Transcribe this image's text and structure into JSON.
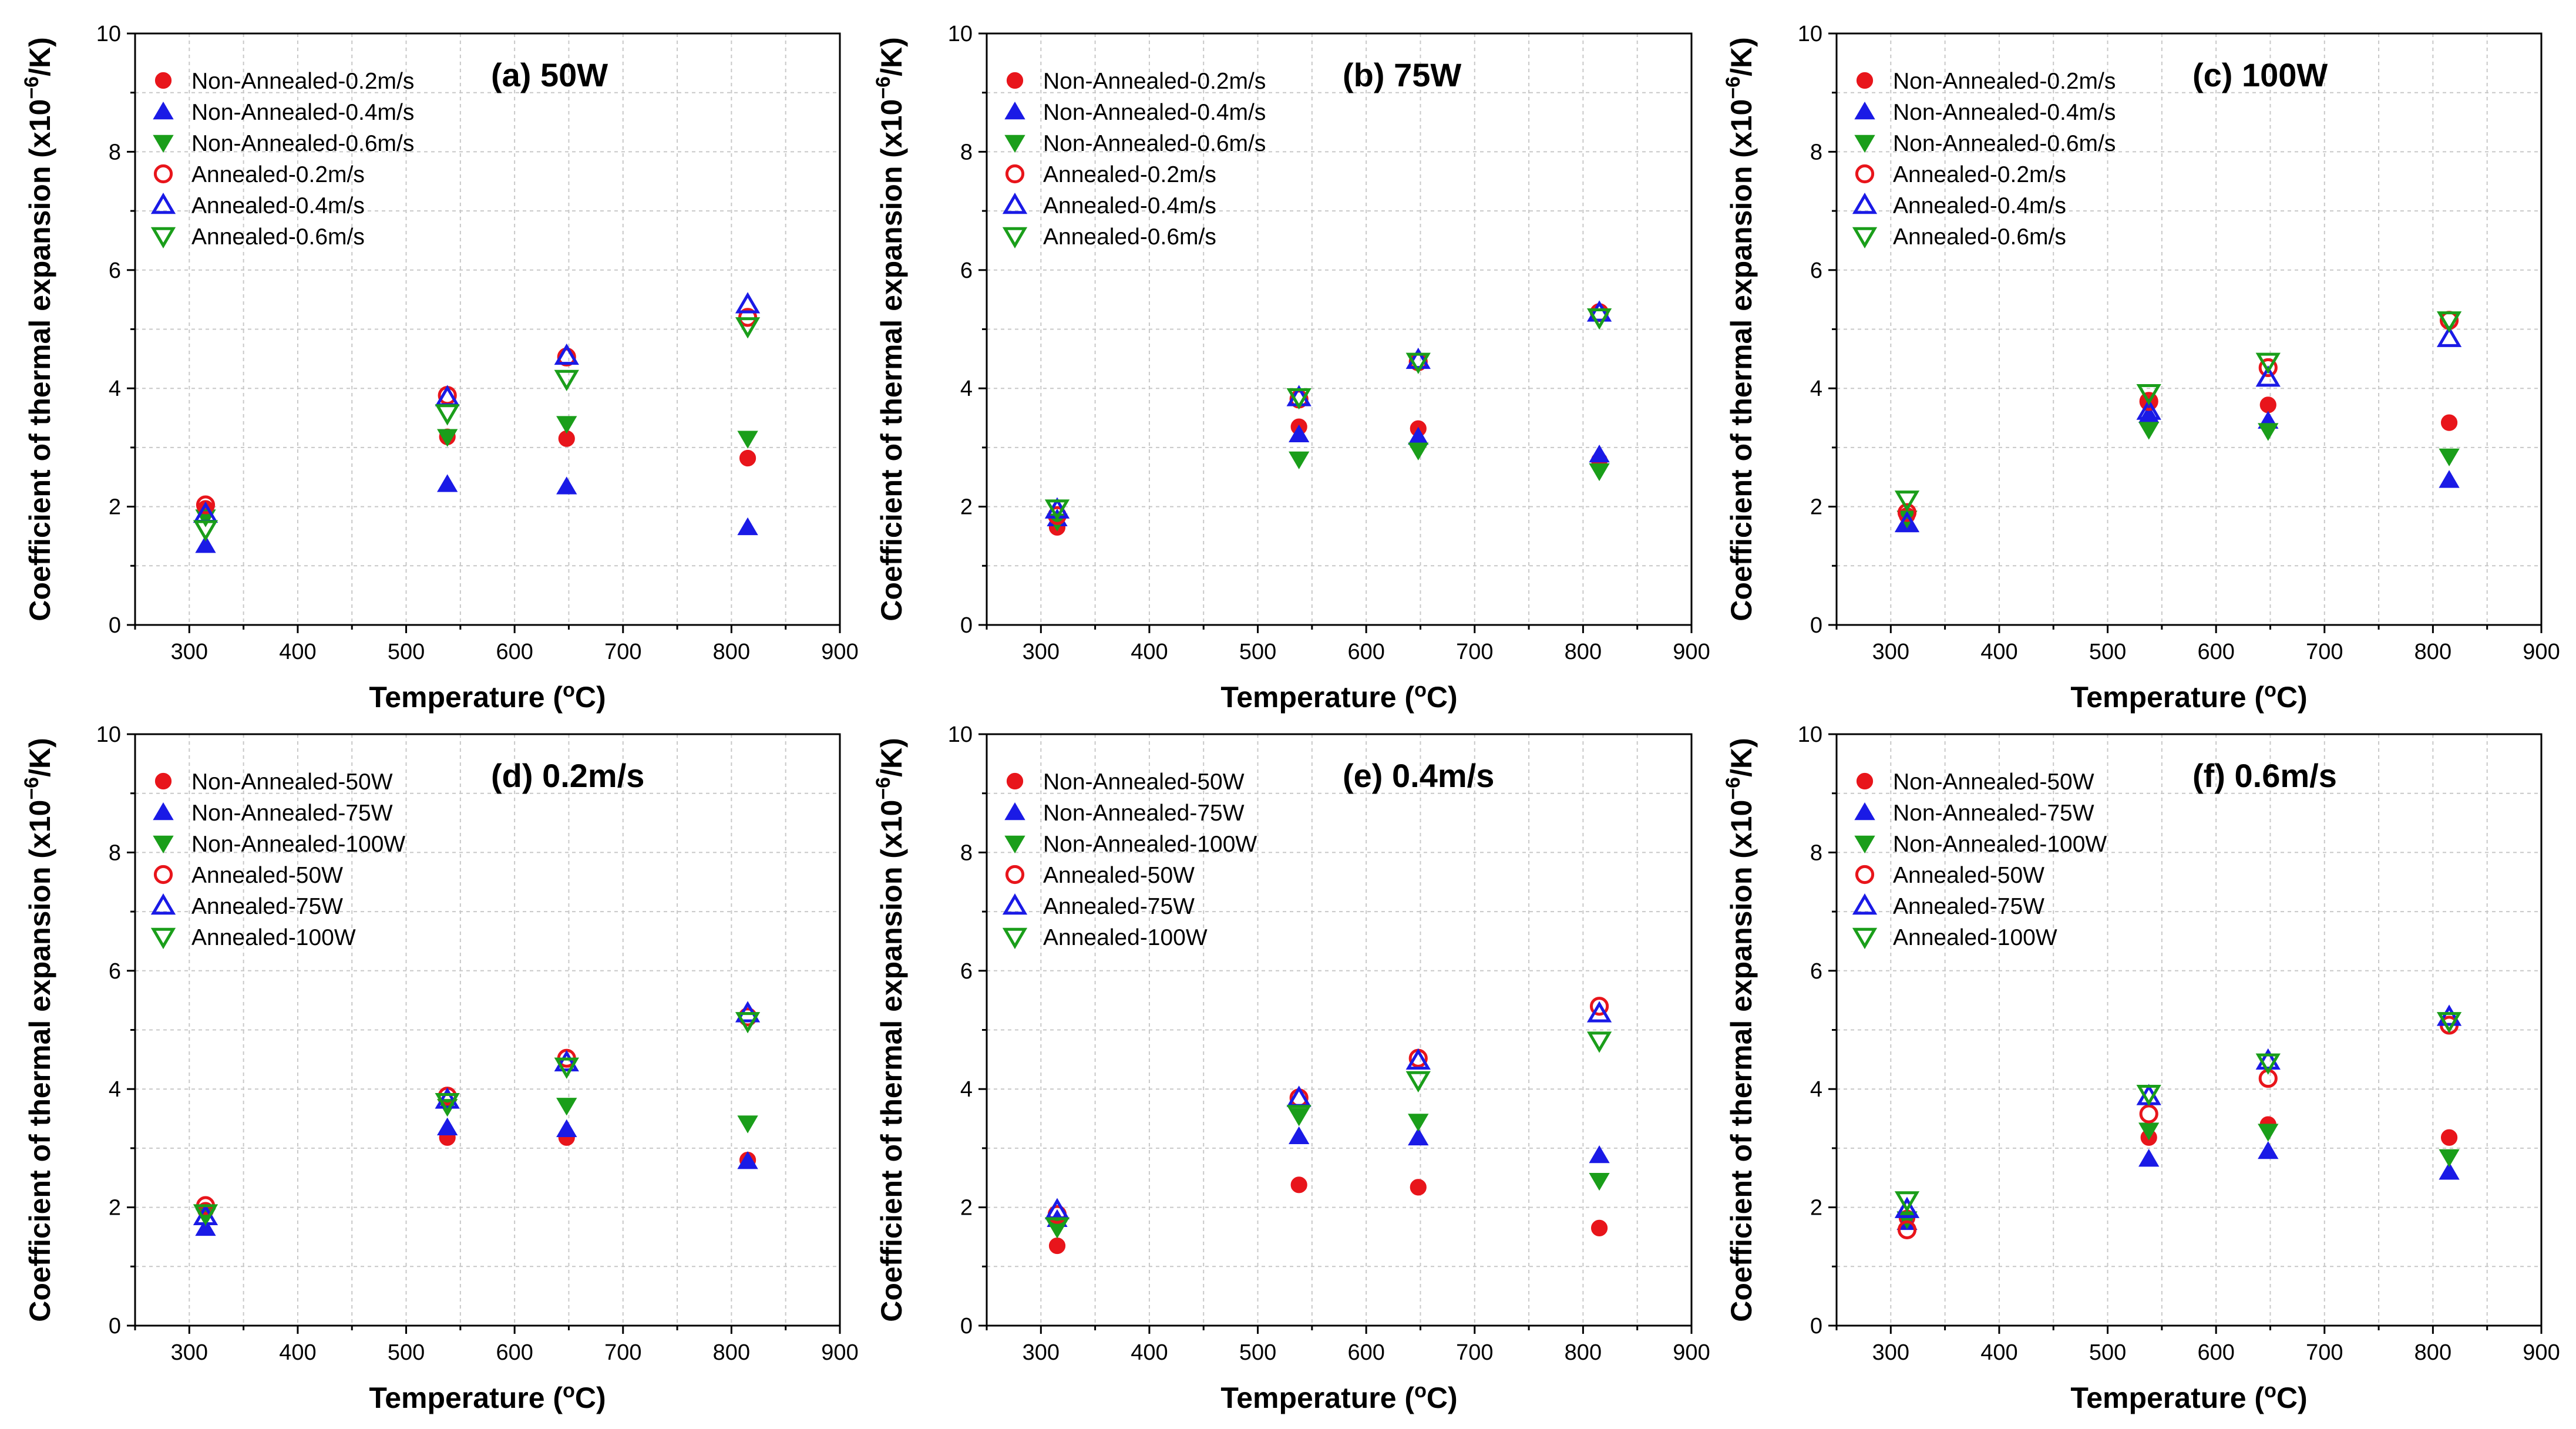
{
  "figure": {
    "ylabel_prefix": "Coefficient of thermal expansion (x10",
    "ylabel_exponent": "−6",
    "ylabel_suffix": "/K)",
    "xlabel_prefix": "Temperature (",
    "xlabel_degree": "o",
    "xlabel_suffix": "C)"
  },
  "chart_data": [
    {
      "type": "scatter",
      "title": "(a) 50W",
      "xlabel": "Temperature (°C)",
      "ylabel": "Coefficient of thermal expansion (x10⁻⁶/K)",
      "xlim": [
        250,
        900
      ],
      "ylim": [
        0,
        10
      ],
      "xticks": [
        300,
        400,
        500,
        600,
        700,
        800,
        900
      ],
      "yticks": [
        0,
        2,
        4,
        6,
        8,
        10
      ],
      "grid": true,
      "legend": "top-left",
      "x": [
        315,
        538,
        648,
        815
      ],
      "series": [
        {
          "name": "Non-Annealed-0.2m/s",
          "marker": "circle",
          "filled": true,
          "color": "#e8151b",
          "values": [
            1.97,
            3.18,
            3.15,
            2.82
          ]
        },
        {
          "name": "Non-Annealed-0.4m/s",
          "marker": "triangle-up",
          "filled": true,
          "color": "#1a1ae6",
          "values": [
            1.35,
            2.38,
            2.34,
            1.65
          ]
        },
        {
          "name": "Non-Annealed-0.6m/s",
          "marker": "triangle-down",
          "filled": true,
          "color": "#1a9e1a",
          "values": [
            1.82,
            3.18,
            3.4,
            3.15
          ]
        },
        {
          "name": "Annealed-0.2m/s",
          "marker": "circle",
          "filled": false,
          "color": "#e8151b",
          "values": [
            2.03,
            3.88,
            4.53,
            5.2
          ]
        },
        {
          "name": "Annealed-0.4m/s",
          "marker": "triangle-up",
          "filled": false,
          "color": "#1a1ae6",
          "values": [
            1.88,
            3.85,
            4.55,
            5.42
          ]
        },
        {
          "name": "Annealed-0.6m/s",
          "marker": "triangle-down",
          "filled": false,
          "color": "#1a9e1a",
          "values": [
            1.62,
            3.58,
            4.16,
            5.05
          ]
        }
      ]
    },
    {
      "type": "scatter",
      "title": "(b) 75W",
      "xlabel": "Temperature (°C)",
      "ylabel": "Coefficient of thermal expansion (x10⁻⁶/K)",
      "xlim": [
        250,
        900
      ],
      "ylim": [
        0,
        10
      ],
      "xticks": [
        300,
        400,
        500,
        600,
        700,
        800,
        900
      ],
      "yticks": [
        0,
        2,
        4,
        6,
        8,
        10
      ],
      "grid": true,
      "legend": "top-left",
      "x": [
        315,
        538,
        648,
        815
      ],
      "series": [
        {
          "name": "Non-Annealed-0.2m/s",
          "marker": "circle",
          "filled": true,
          "color": "#e8151b",
          "values": [
            1.65,
            3.35,
            3.32,
            2.78
          ]
        },
        {
          "name": "Non-Annealed-0.4m/s",
          "marker": "triangle-up",
          "filled": true,
          "color": "#1a1ae6",
          "values": [
            1.8,
            3.22,
            3.18,
            2.88
          ]
        },
        {
          "name": "Non-Annealed-0.6m/s",
          "marker": "triangle-down",
          "filled": true,
          "color": "#1a9e1a",
          "values": [
            1.75,
            2.8,
            2.95,
            2.6
          ]
        },
        {
          "name": "Annealed-0.2m/s",
          "marker": "circle",
          "filled": false,
          "color": "#e8151b",
          "values": [
            1.85,
            3.82,
            4.45,
            5.28
          ]
        },
        {
          "name": "Annealed-0.4m/s",
          "marker": "triangle-up",
          "filled": false,
          "color": "#1a1ae6",
          "values": [
            1.95,
            3.85,
            4.48,
            5.28
          ]
        },
        {
          "name": "Annealed-0.6m/s",
          "marker": "triangle-down",
          "filled": false,
          "color": "#1a9e1a",
          "values": [
            1.97,
            3.85,
            4.45,
            5.2
          ]
        }
      ]
    },
    {
      "type": "scatter",
      "title": "(c) 100W",
      "xlabel": "Temperature (°C)",
      "ylabel": "Coefficient of thermal expansion (x10⁻⁶/K)",
      "xlim": [
        250,
        900
      ],
      "ylim": [
        0,
        10
      ],
      "xticks": [
        300,
        400,
        500,
        600,
        700,
        800,
        900
      ],
      "yticks": [
        0,
        2,
        4,
        6,
        8,
        10
      ],
      "grid": true,
      "legend": "top-left",
      "x": [
        315,
        538,
        648,
        815
      ],
      "series": [
        {
          "name": "Non-Annealed-0.2m/s",
          "marker": "circle",
          "filled": true,
          "color": "#e8151b",
          "values": [
            1.85,
            3.75,
            3.72,
            3.42
          ]
        },
        {
          "name": "Non-Annealed-0.4m/s",
          "marker": "triangle-up",
          "filled": true,
          "color": "#1a1ae6",
          "values": [
            1.7,
            3.55,
            3.45,
            2.45
          ]
        },
        {
          "name": "Non-Annealed-0.6m/s",
          "marker": "triangle-down",
          "filled": true,
          "color": "#1a9e1a",
          "values": [
            1.8,
            3.3,
            3.28,
            2.85
          ]
        },
        {
          "name": "Annealed-0.2m/s",
          "marker": "circle",
          "filled": false,
          "color": "#e8151b",
          "values": [
            1.9,
            3.78,
            4.35,
            5.15
          ]
        },
        {
          "name": "Annealed-0.4m/s",
          "marker": "triangle-up",
          "filled": false,
          "color": "#1a1ae6",
          "values": [
            1.72,
            3.62,
            4.18,
            4.85
          ]
        },
        {
          "name": "Annealed-0.6m/s",
          "marker": "triangle-down",
          "filled": false,
          "color": "#1a9e1a",
          "values": [
            2.12,
            3.92,
            4.45,
            5.15
          ]
        }
      ]
    },
    {
      "type": "scatter",
      "title": "(d) 0.2m/s",
      "xlabel": "Temperature (°C)",
      "ylabel": "Coefficient of thermal expansion (x10⁻⁶/K)",
      "xlim": [
        250,
        900
      ],
      "ylim": [
        0,
        10
      ],
      "xticks": [
        300,
        400,
        500,
        600,
        700,
        800,
        900
      ],
      "yticks": [
        0,
        2,
        4,
        6,
        8,
        10
      ],
      "grid": true,
      "legend": "top-left",
      "x": [
        315,
        538,
        648,
        815
      ],
      "series": [
        {
          "name": "Non-Annealed-50W",
          "marker": "circle",
          "filled": true,
          "color": "#e8151b",
          "values": [
            1.95,
            3.18,
            3.18,
            2.8
          ]
        },
        {
          "name": "Non-Annealed-75W",
          "marker": "triangle-up",
          "filled": true,
          "color": "#1a1ae6",
          "values": [
            1.65,
            3.35,
            3.32,
            2.78
          ]
        },
        {
          "name": "Non-Annealed-100W",
          "marker": "triangle-down",
          "filled": true,
          "color": "#1a9e1a",
          "values": [
            1.85,
            3.7,
            3.72,
            3.42
          ]
        },
        {
          "name": "Annealed-50W",
          "marker": "circle",
          "filled": false,
          "color": "#e8151b",
          "values": [
            2.03,
            3.88,
            4.52,
            5.22
          ]
        },
        {
          "name": "Annealed-75W",
          "marker": "triangle-up",
          "filled": false,
          "color": "#1a1ae6",
          "values": [
            1.85,
            3.82,
            4.45,
            5.28
          ]
        },
        {
          "name": "Annealed-100W",
          "marker": "triangle-down",
          "filled": false,
          "color": "#1a9e1a",
          "values": [
            1.9,
            3.78,
            4.38,
            5.15
          ]
        }
      ]
    },
    {
      "type": "scatter",
      "title": "(e) 0.4m/s",
      "xlabel": "Temperature (°C)",
      "ylabel": "Coefficient of thermal expansion (x10⁻⁶/K)",
      "xlim": [
        250,
        900
      ],
      "ylim": [
        0,
        10
      ],
      "xticks": [
        300,
        400,
        500,
        600,
        700,
        800,
        900
      ],
      "yticks": [
        0,
        2,
        4,
        6,
        8,
        10
      ],
      "grid": true,
      "legend": "top-left",
      "x": [
        315,
        538,
        648,
        815
      ],
      "series": [
        {
          "name": "Non-Annealed-50W",
          "marker": "circle",
          "filled": true,
          "color": "#e8151b",
          "values": [
            1.35,
            2.38,
            2.34,
            1.65
          ]
        },
        {
          "name": "Non-Annealed-75W",
          "marker": "triangle-up",
          "filled": true,
          "color": "#1a1ae6",
          "values": [
            1.8,
            3.2,
            3.18,
            2.88
          ]
        },
        {
          "name": "Non-Annealed-100W",
          "marker": "triangle-down",
          "filled": true,
          "color": "#1a9e1a",
          "values": [
            1.7,
            3.55,
            3.45,
            2.45
          ]
        },
        {
          "name": "Annealed-50W",
          "marker": "circle",
          "filled": false,
          "color": "#e8151b",
          "values": [
            1.88,
            3.85,
            4.52,
            5.4
          ]
        },
        {
          "name": "Annealed-75W",
          "marker": "triangle-up",
          "filled": false,
          "color": "#1a1ae6",
          "values": [
            1.95,
            3.85,
            4.48,
            5.28
          ]
        },
        {
          "name": "Annealed-100W",
          "marker": "triangle-down",
          "filled": false,
          "color": "#1a9e1a",
          "values": [
            1.68,
            3.58,
            4.15,
            4.82
          ]
        }
      ]
    },
    {
      "type": "scatter",
      "title": "(f) 0.6m/s",
      "xlabel": "Temperature (°C)",
      "ylabel": "Coefficient of thermal expansion (x10⁻⁶/K)",
      "xlim": [
        250,
        900
      ],
      "ylim": [
        0,
        10
      ],
      "xticks": [
        300,
        400,
        500,
        600,
        700,
        800,
        900
      ],
      "yticks": [
        0,
        2,
        4,
        6,
        8,
        10
      ],
      "grid": true,
      "legend": "top-left",
      "x": [
        315,
        538,
        648,
        815
      ],
      "series": [
        {
          "name": "Non-Annealed-50W",
          "marker": "circle",
          "filled": true,
          "color": "#e8151b",
          "values": [
            1.82,
            3.18,
            3.4,
            3.18
          ]
        },
        {
          "name": "Non-Annealed-75W",
          "marker": "triangle-up",
          "filled": true,
          "color": "#1a1ae6",
          "values": [
            1.75,
            2.82,
            2.95,
            2.6
          ]
        },
        {
          "name": "Non-Annealed-100W",
          "marker": "triangle-down",
          "filled": true,
          "color": "#1a9e1a",
          "values": [
            1.8,
            3.3,
            3.28,
            2.85
          ]
        },
        {
          "name": "Annealed-50W",
          "marker": "circle",
          "filled": false,
          "color": "#e8151b",
          "values": [
            1.62,
            3.58,
            4.18,
            5.08
          ]
        },
        {
          "name": "Annealed-75W",
          "marker": "triangle-up",
          "filled": false,
          "color": "#1a1ae6",
          "values": [
            1.97,
            3.88,
            4.48,
            5.22
          ]
        },
        {
          "name": "Annealed-100W",
          "marker": "triangle-down",
          "filled": false,
          "color": "#1a9e1a",
          "values": [
            2.12,
            3.92,
            4.45,
            5.15
          ]
        }
      ]
    }
  ]
}
